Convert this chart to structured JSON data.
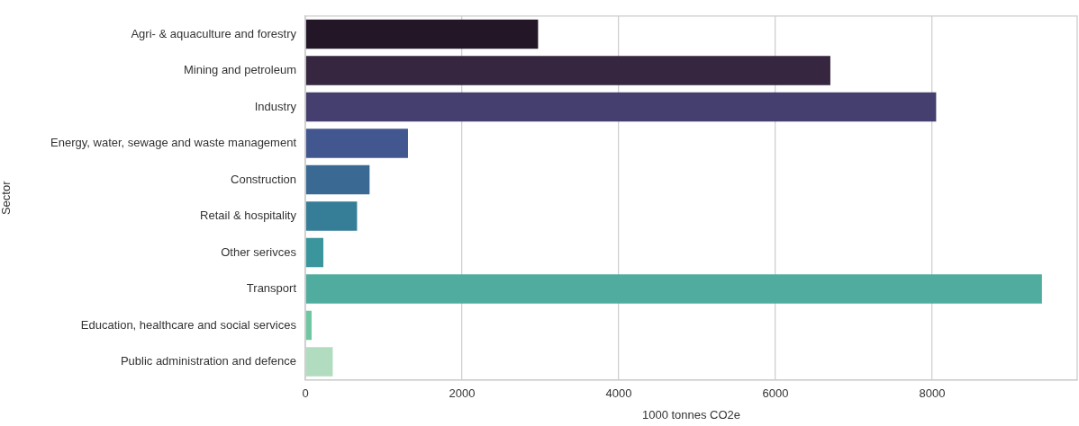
{
  "chart_data": {
    "type": "bar",
    "orientation": "horizontal",
    "xlabel": "1000 tonnes CO2e",
    "ylabel": "Sector",
    "categories": [
      "Agri- & aquaculture and forestry",
      "Mining and petroleum",
      "Industry",
      "Energy, water, sewage and waste management",
      "Construction",
      "Retail & hospitality",
      "Other serivces",
      "Transport",
      "Education, healthcare and social services",
      "Public administration and defence"
    ],
    "values": [
      2970,
      6700,
      8050,
      1310,
      820,
      660,
      230,
      9400,
      80,
      350
    ],
    "colors": [
      "#221627",
      "#36263f",
      "#443f6e",
      "#42568f",
      "#3a6a93",
      "#367e97",
      "#3a959c",
      "#50ac9f",
      "#6dc7a1",
      "#b2dcc0"
    ],
    "xlim": [
      0,
      9850
    ],
    "xticks": [
      0,
      2000,
      4000,
      6000,
      8000
    ],
    "grid": "x",
    "legend": false
  }
}
